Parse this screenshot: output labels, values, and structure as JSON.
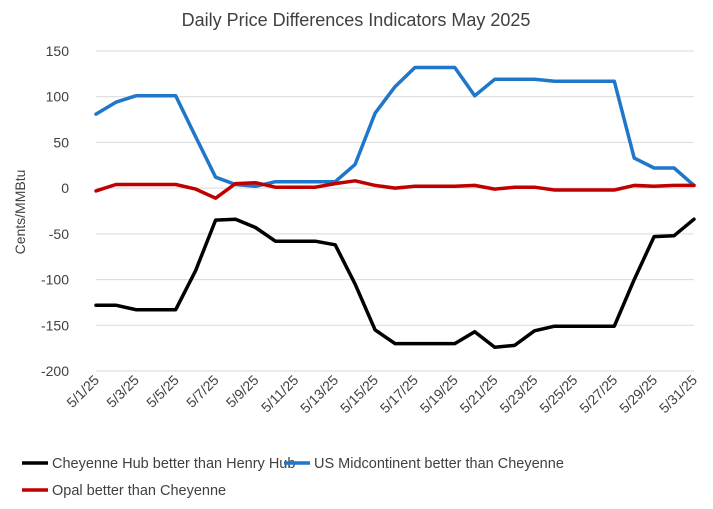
{
  "chart_data": {
    "type": "line",
    "title": "Daily Price Differences Indicators May 2025",
    "xlabel": "",
    "ylabel": "Cents/MMBtu",
    "ylim": [
      -200,
      150
    ],
    "y_ticks": [
      150,
      100,
      50,
      0,
      -50,
      -100,
      -150,
      -200
    ],
    "grid": "horizontal",
    "legend_position": "bottom",
    "categories": [
      "5/1/25",
      "5/2/25",
      "5/3/25",
      "5/4/25",
      "5/5/25",
      "5/6/25",
      "5/7/25",
      "5/8/25",
      "5/9/25",
      "5/10/25",
      "5/11/25",
      "5/12/25",
      "5/13/25",
      "5/14/25",
      "5/15/25",
      "5/16/25",
      "5/17/25",
      "5/18/25",
      "5/19/25",
      "5/20/25",
      "5/21/25",
      "5/22/25",
      "5/23/25",
      "5/24/25",
      "5/25/25",
      "5/26/25",
      "5/27/25",
      "5/28/25",
      "5/29/25",
      "5/30/25",
      "5/31/25"
    ],
    "x_tick_labels": [
      "5/1/25",
      "5/3/25",
      "5/5/25",
      "5/7/25",
      "5/9/25",
      "5/11/25",
      "5/13/25",
      "5/15/25",
      "5/17/25",
      "5/19/25",
      "5/21/25",
      "5/23/25",
      "5/25/25",
      "5/27/25",
      "5/29/25",
      "5/31/25"
    ],
    "series": [
      {
        "name": "Cheyenne Hub better than Henry Hub",
        "color": "#000000",
        "values": [
          -128,
          -128,
          -133,
          -133,
          -133,
          -90,
          -35,
          -34,
          -43,
          -58,
          -58,
          -58,
          -62,
          -105,
          -155,
          -170,
          -170,
          -170,
          -170,
          -157,
          -174,
          -172,
          -156,
          -151,
          -151,
          -151,
          -151,
          -100,
          -53,
          -52,
          -34
        ]
      },
      {
        "name": "US Midcontinent better than Cheyenne",
        "color": "#1f77c9",
        "values": [
          81,
          94,
          101,
          101,
          101,
          56,
          12,
          4,
          2,
          7,
          7,
          7,
          7,
          26,
          82,
          111,
          132,
          132,
          132,
          101,
          119,
          119,
          119,
          117,
          117,
          117,
          117,
          33,
          22,
          22,
          3
        ]
      },
      {
        "name": "Opal better than Cheyenne",
        "color": "#c00000",
        "values": [
          -3,
          4,
          4,
          4,
          4,
          -1,
          -11,
          5,
          6,
          1,
          1,
          1,
          5,
          8,
          3,
          0,
          2,
          2,
          2,
          3,
          -1,
          1,
          1,
          -2,
          -2,
          -2,
          -2,
          3,
          2,
          3,
          3
        ]
      }
    ]
  }
}
